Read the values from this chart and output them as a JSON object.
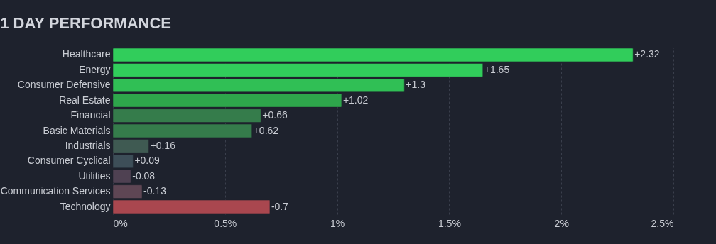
{
  "chart_data": {
    "type": "bar",
    "orientation": "horizontal",
    "title": "1 DAY PERFORMANCE",
    "categories": [
      "Healthcare",
      "Energy",
      "Consumer Defensive",
      "Real Estate",
      "Financial",
      "Basic Materials",
      "Industrials",
      "Consumer Cyclical",
      "Utilities",
      "Communication Services",
      "Technology"
    ],
    "values": [
      2.32,
      1.65,
      1.3,
      1.02,
      0.66,
      0.62,
      0.16,
      0.09,
      -0.08,
      -0.13,
      -0.7
    ],
    "base": [
      0,
      0,
      0,
      0,
      0,
      0,
      0,
      0,
      0.08,
      0.13,
      0.7
    ],
    "value_labels": [
      "+2.32",
      "+1.65",
      "+1.3",
      "+1.02",
      "+0.66",
      "+0.62",
      "+0.16",
      "+0.09",
      "-0.08",
      "-0.13",
      "-0.7"
    ],
    "colors": [
      "#31cd5b",
      "#31cd5b",
      "#30bf55",
      "#2ea64b",
      "#357c4b",
      "#357c4b",
      "#3f5a52",
      "#3d4e58",
      "#4f4152",
      "#5e4654",
      "#a9474f"
    ],
    "xlim": [
      0,
      2.5
    ],
    "xticks": [
      {
        "value": 0,
        "label": "0%"
      },
      {
        "value": 0.5,
        "label": "0.5%"
      },
      {
        "value": 1,
        "label": "1%"
      },
      {
        "value": 1.5,
        "label": "1.5%"
      },
      {
        "value": 2,
        "label": "2%"
      },
      {
        "value": 2.5,
        "label": "2.5%"
      }
    ],
    "grid": "x"
  }
}
